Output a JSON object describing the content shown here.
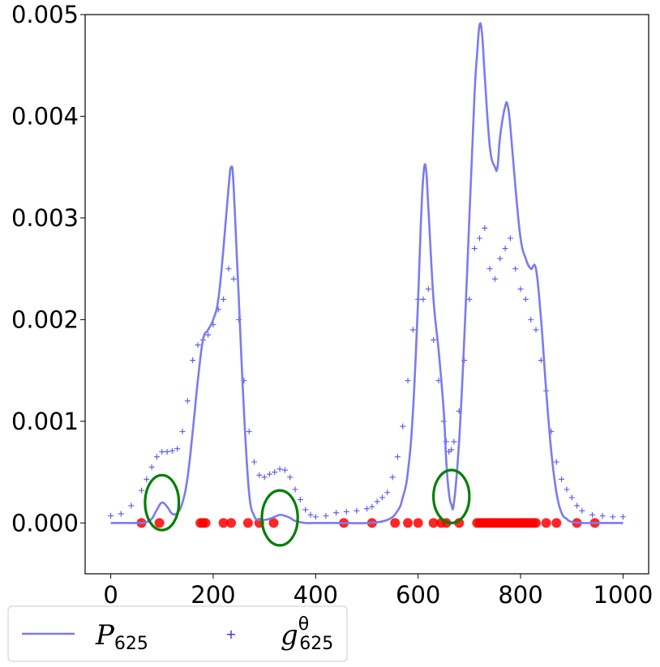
{
  "chart_data": {
    "type": "line",
    "title": "",
    "xlabel": "",
    "ylabel": "",
    "xlim": [
      -50,
      1050
    ],
    "ylim": [
      -0.0005,
      0.005
    ],
    "xticks": [
      0,
      200,
      400,
      600,
      800,
      1000
    ],
    "xtick_labels": [
      "0",
      "200",
      "400",
      "600",
      "800",
      "1000"
    ],
    "yticks": [
      0.0,
      0.001,
      0.002,
      0.003,
      0.004,
      0.005
    ],
    "ytick_labels": [
      "0.000",
      "0.001",
      "0.002",
      "0.003",
      "0.004",
      "0.005"
    ],
    "grid": false,
    "legend_placement": "bottom-left, below axes",
    "colors": {
      "P_line": "#7b7bf0",
      "g_markers": "#2a2aee",
      "samples": "#ff0000",
      "ellipses": "#008000"
    },
    "series": [
      {
        "name_main": "P",
        "name_sub": "625",
        "kind": "line",
        "x": [
          0,
          20,
          40,
          60,
          70,
          80,
          90,
          100,
          110,
          120,
          130,
          140,
          150,
          160,
          170,
          180,
          190,
          200,
          210,
          220,
          230,
          235,
          240,
          250,
          260,
          270,
          280,
          290,
          300,
          310,
          320,
          330,
          340,
          350,
          360,
          380,
          400,
          450,
          500,
          540,
          560,
          570,
          580,
          590,
          600,
          605,
          610,
          615,
          620,
          630,
          640,
          650,
          655,
          660,
          665,
          670,
          680,
          690,
          700,
          710,
          715,
          720,
          725,
          730,
          740,
          750,
          755,
          760,
          770,
          775,
          780,
          790,
          800,
          810,
          820,
          830,
          840,
          850,
          860,
          870,
          880,
          890,
          900,
          920,
          950,
          1000
        ],
        "y": [
          0.0,
          0.0,
          0.0,
          0.0,
          1e-05,
          4e-05,
          0.00013,
          0.0002,
          0.00016,
          9e-05,
          0.0001,
          0.0002,
          0.00045,
          0.0009,
          0.0014,
          0.0018,
          0.0019,
          0.002,
          0.0022,
          0.0027,
          0.0033,
          0.0035,
          0.0033,
          0.0022,
          0.0011,
          0.0003,
          7e-05,
          3e-05,
          3e-05,
          4e-05,
          6e-05,
          8e-05,
          7e-05,
          5e-05,
          2e-05,
          0.0,
          0.0,
          0.0,
          0.0,
          3e-05,
          0.00012,
          0.00025,
          0.0005,
          0.0011,
          0.0022,
          0.0029,
          0.0034,
          0.0035,
          0.0031,
          0.0022,
          0.0017,
          0.0011,
          0.0006,
          0.0003,
          0.00018,
          0.0002,
          0.0008,
          0.0018,
          0.003,
          0.0042,
          0.0046,
          0.0049,
          0.0048,
          0.0044,
          0.0037,
          0.0035,
          0.0035,
          0.0038,
          0.0041,
          0.0041,
          0.0039,
          0.0033,
          0.0028,
          0.0026,
          0.0025,
          0.0025,
          0.002,
          0.0013,
          0.0007,
          0.0003,
          0.0001,
          4e-05,
          1e-05,
          0.0,
          0.0,
          0.0
        ]
      },
      {
        "name_main": "g",
        "name_sub": "625",
        "name_sup": "θ",
        "kind": "scatter-plus",
        "x": [
          0,
          20,
          40,
          60,
          70,
          80,
          90,
          100,
          110,
          120,
          130,
          140,
          150,
          160,
          170,
          180,
          190,
          200,
          210,
          220,
          230,
          240,
          250,
          260,
          270,
          280,
          290,
          300,
          310,
          320,
          330,
          340,
          350,
          360,
          370,
          380,
          390,
          400,
          420,
          440,
          460,
          480,
          500,
          510,
          520,
          530,
          540,
          550,
          560,
          570,
          580,
          590,
          600,
          610,
          620,
          630,
          640,
          650,
          655,
          660,
          665,
          670,
          680,
          690,
          700,
          710,
          720,
          730,
          740,
          750,
          760,
          770,
          780,
          790,
          800,
          810,
          820,
          830,
          840,
          850,
          860,
          870,
          880,
          890,
          900,
          910,
          920,
          940,
          960,
          980,
          1000
        ],
        "y": [
          7e-05,
          9e-05,
          0.00017,
          0.00032,
          0.00043,
          0.00055,
          0.00065,
          0.0007,
          0.0007,
          0.00071,
          0.00073,
          0.0009,
          0.0012,
          0.0016,
          0.00175,
          0.0018,
          0.00185,
          0.00195,
          0.0021,
          0.0022,
          0.0025,
          0.0024,
          0.002,
          0.0014,
          0.0009,
          0.0006,
          0.00047,
          0.00045,
          0.00048,
          0.0005,
          0.00053,
          0.00052,
          0.00045,
          0.00033,
          0.00023,
          0.00013,
          8e-05,
          6e-05,
          7e-05,
          0.0001,
          0.00011,
          0.00012,
          0.00014,
          0.00016,
          0.00021,
          0.00025,
          0.0003,
          0.00045,
          0.00065,
          0.00095,
          0.0014,
          0.0019,
          0.0022,
          0.0022,
          0.0023,
          0.0018,
          0.0014,
          0.001,
          0.0008,
          0.0007,
          0.00072,
          0.0008,
          0.0011,
          0.0016,
          0.0022,
          0.0027,
          0.0028,
          0.0029,
          0.0025,
          0.0024,
          0.0026,
          0.0027,
          0.0028,
          0.0025,
          0.0023,
          0.0022,
          0.002,
          0.0019,
          0.0016,
          0.0013,
          0.0009,
          0.0006,
          0.00043,
          0.00033,
          0.00025,
          0.00017,
          0.00012,
          8e-05,
          7e-05,
          6e-05,
          6e-05
        ]
      },
      {
        "kind": "samples",
        "x": [
          60,
          95,
          175,
          180,
          185,
          220,
          235,
          268,
          290,
          318,
          455,
          510,
          555,
          580,
          600,
          630,
          645,
          655,
          680,
          715,
          720,
          725,
          730,
          735,
          740,
          745,
          750,
          755,
          760,
          765,
          770,
          775,
          780,
          785,
          790,
          795,
          800,
          805,
          810,
          815,
          820,
          825,
          830,
          850,
          870,
          910,
          945
        ],
        "y": [
          0,
          0,
          0,
          0,
          0,
          0,
          0,
          0,
          0,
          0,
          0,
          0,
          0,
          0,
          0,
          0,
          0,
          0,
          0,
          0,
          0,
          0,
          0,
          0,
          0,
          0,
          0,
          0,
          0,
          0,
          0,
          0,
          0,
          0,
          0,
          0,
          0,
          0,
          0,
          0,
          0,
          0,
          0,
          0,
          0,
          0,
          0
        ]
      }
    ],
    "annotations": [
      {
        "shape": "ellipse",
        "cx": 100,
        "cy": 0.0002,
        "rx": 33,
        "ry": 0.00027
      },
      {
        "shape": "ellipse",
        "cx": 330,
        "cy": 5e-05,
        "rx": 35,
        "ry": 0.00027
      },
      {
        "shape": "ellipse",
        "cx": 665,
        "cy": 0.00026,
        "rx": 35,
        "ry": 0.00026
      }
    ]
  }
}
